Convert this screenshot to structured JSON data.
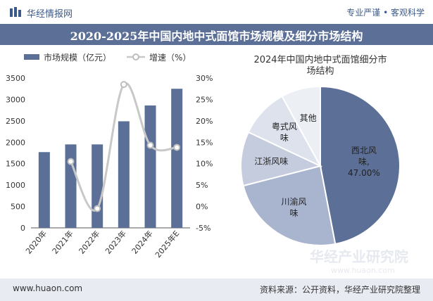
{
  "header": {
    "brand": "华经情报网",
    "slogan": "专业严谨 • 客观科学",
    "title": "2020-2025年中国内地中式面馆市场规模及细分市场结构"
  },
  "footer": {
    "url": "www.huaon.com",
    "source": "资料来源：公开资料，华经产业研究院整理"
  },
  "watermark": {
    "text_cn": "华经产业研究院",
    "text_url": "www.huaon.com"
  },
  "colors": {
    "bar": "#5b6f97",
    "line": "#c8c8c8",
    "pie": [
      "#5b6f97",
      "#a9b4cf",
      "#c5ccde",
      "#dde2ec",
      "#eceff4"
    ]
  },
  "chart_data": [
    {
      "type": "bar",
      "title": "",
      "categories": [
        "2020年",
        "2021年",
        "2022年",
        "2023年",
        "2024年",
        "2025年E"
      ],
      "series": [
        {
          "name": "市场规模（亿元）",
          "type": "bar",
          "axis": "left",
          "values": [
            1770,
            1950,
            1950,
            2490,
            2860,
            3250
          ]
        },
        {
          "name": "增速（%）",
          "type": "line",
          "axis": "right",
          "values": [
            null,
            10.5,
            -0.5,
            28.5,
            14.3,
            13.8
          ]
        }
      ],
      "y_left": {
        "ylim": [
          0,
          3500
        ],
        "ticks": [
          0,
          500,
          1000,
          1500,
          2000,
          2500,
          3000,
          3500
        ]
      },
      "y_right": {
        "ylim": [
          -5,
          30
        ],
        "ticks": [
          "-5%",
          "0%",
          "5%",
          "10%",
          "15%",
          "20%",
          "25%",
          "30%"
        ]
      },
      "legend": [
        "市场规模（亿元）",
        "增速（%）"
      ]
    },
    {
      "type": "pie",
      "title": "2024年中国内地中式面馆细分市场结构",
      "title_lines": [
        "2024年中国内地中式面馆细分市",
        "场结构"
      ],
      "slices": [
        {
          "label": "西北风味",
          "label_lines": [
            "西北风",
            "味,"
          ],
          "value": 47.0,
          "value_label": "47.00%"
        },
        {
          "label": "川渝风味",
          "label_lines": [
            "川渝风",
            "味"
          ],
          "value": 24.0
        },
        {
          "label": "江浙风味",
          "label_lines": [
            "江浙风味"
          ],
          "value": 11.0
        },
        {
          "label": "粤式风味",
          "label_lines": [
            "粤式风",
            "味"
          ],
          "value": 10.0
        },
        {
          "label": "其他",
          "label_lines": [
            "其他"
          ],
          "value": 8.0
        }
      ]
    }
  ]
}
